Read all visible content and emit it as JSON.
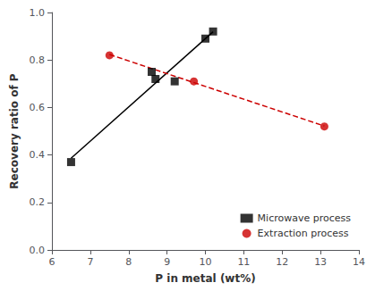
{
  "chart_data": {
    "type": "scatter",
    "xlabel": "P in metal (wt%)",
    "ylabel": "Recovery ratio of P",
    "xlim": [
      6,
      14
    ],
    "ylim": [
      0.0,
      1.0
    ],
    "xticks": [
      6,
      7,
      8,
      9,
      10,
      11,
      12,
      13,
      14
    ],
    "yticks": [
      {
        "value": 0.0,
        "label": "0.0"
      },
      0.2,
      0.4,
      0.6,
      0.8,
      {
        "value": 1.0,
        "label": "1.0"
      }
    ],
    "grid": false,
    "legend": "lower right",
    "series": [
      {
        "type": "line",
        "color": "#000000",
        "line_style": "solid",
        "x": [
          6.5,
          10.2
        ],
        "values": [
          0.3862,
          0.9185
        ]
      },
      {
        "type": "line",
        "color": "#cc0000",
        "line_style": "dashed",
        "x": [
          7.5,
          13.1
        ],
        "values": [
          0.8231,
          0.522
        ]
      },
      {
        "type": "scatter",
        "name": "Microwave process",
        "color": "#000000",
        "marker": "square",
        "x": [
          6.5,
          8.6,
          8.7,
          9.2,
          10.0,
          10.2
        ],
        "values": [
          0.37,
          0.75,
          0.72,
          0.71,
          0.89,
          0.92
        ]
      },
      {
        "type": "scatter",
        "name": "Extraction process",
        "color": "#cc0000",
        "marker": "circle",
        "x": [
          7.5,
          9.7,
          13.1
        ],
        "values": [
          0.82,
          0.71,
          0.52
        ]
      }
    ]
  }
}
